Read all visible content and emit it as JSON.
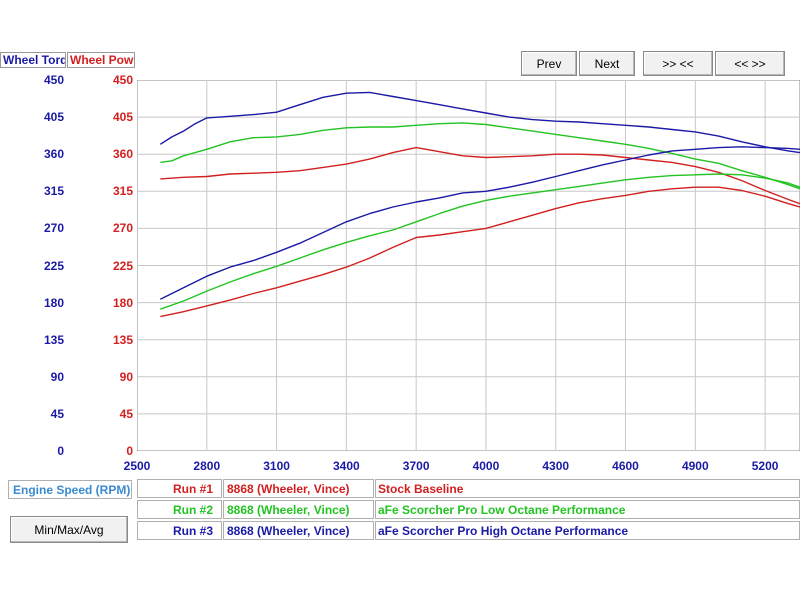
{
  "header": {
    "torque_label": "Wheel Torq",
    "power_label": "Wheel Pow"
  },
  "nav": {
    "prev": "Prev",
    "next": "Next",
    "zoom_in": ">> <<",
    "zoom_out": "<< >>"
  },
  "bottom": {
    "x_axis_title": "Engine Speed (RPM)",
    "minmax_button": "Min/Max/Avg"
  },
  "runs": [
    {
      "run": "Run #1",
      "vehicle": "8868 (Wheeler, Vince)",
      "description": "Stock Baseline",
      "color": "#d22020"
    },
    {
      "run": "Run #2",
      "vehicle": "8868 (Wheeler, Vince)",
      "description": "aFe Scorcher Pro Low Octane Performance",
      "color": "#22c322"
    },
    {
      "run": "Run #3",
      "vehicle": "8868 (Wheeler, Vince)",
      "description": "aFe Scorcher Pro High Octane Performance",
      "color": "#1a1aa6"
    }
  ],
  "colors": {
    "torque_axis": "#1a1aa6",
    "power_axis": "#d22020",
    "grid": "#c8c8c8"
  },
  "chart_data": {
    "type": "line",
    "xlabel": "Engine Speed (RPM)",
    "y_left_label": "Wheel Torq",
    "y_right_label": "Wheel Pow",
    "xlim": [
      2500,
      5350
    ],
    "ylim": [
      0,
      450
    ],
    "grid": true,
    "x_ticks": [
      "2500",
      "2800",
      "3100",
      "3400",
      "3700",
      "4000",
      "4300",
      "4600",
      "4900",
      "5200"
    ],
    "y_ticks": [
      "0",
      "45",
      "90",
      "135",
      "180",
      "225",
      "270",
      "315",
      "360",
      "405",
      "450"
    ],
    "series": [
      {
        "name": "Run #1",
        "measure": "torque",
        "color": "#d22020",
        "x": [
          2600,
          2700,
          2800,
          2900,
          3000,
          3100,
          3200,
          3300,
          3400,
          3500,
          3600,
          3700,
          3800,
          3900,
          4000,
          4100,
          4200,
          4300,
          4400,
          4500,
          4600,
          4700,
          4800,
          4900,
          5000,
          5100,
          5200,
          5300,
          5350
        ],
        "y": [
          330,
          332,
          333,
          336,
          337,
          338,
          340,
          344,
          348,
          354,
          362,
          368,
          363,
          358,
          356,
          357,
          358,
          360,
          360,
          359,
          356,
          353,
          350,
          345,
          338,
          328,
          316,
          305,
          300
        ]
      },
      {
        "name": "Run #1",
        "measure": "power",
        "color": "#d22020",
        "x": [
          2600,
          2700,
          2800,
          2900,
          3000,
          3100,
          3200,
          3300,
          3400,
          3500,
          3600,
          3700,
          3800,
          3900,
          4000,
          4100,
          4200,
          4300,
          4400,
          4500,
          4600,
          4700,
          4800,
          4900,
          5000,
          5100,
          5200,
          5300,
          5350
        ],
        "y": [
          163,
          169,
          176,
          183,
          191,
          198,
          206,
          214,
          223,
          234,
          247,
          259,
          262,
          266,
          270,
          278,
          286,
          294,
          301,
          306,
          310,
          315,
          318,
          320,
          320,
          316,
          309,
          300,
          296
        ]
      },
      {
        "name": "Run #2",
        "measure": "torque",
        "color": "#22c322",
        "x": [
          2600,
          2650,
          2700,
          2800,
          2900,
          3000,
          3100,
          3200,
          3300,
          3400,
          3500,
          3600,
          3700,
          3800,
          3900,
          4000,
          4100,
          4200,
          4300,
          4400,
          4500,
          4600,
          4700,
          4800,
          4900,
          5000,
          5100,
          5200,
          5300,
          5350
        ],
        "y": [
          350,
          352,
          358,
          366,
          375,
          380,
          381,
          384,
          389,
          392,
          393,
          393,
          395,
          397,
          398,
          396,
          392,
          388,
          384,
          380,
          376,
          372,
          367,
          361,
          354,
          349,
          340,
          332,
          323,
          318
        ]
      },
      {
        "name": "Run #2",
        "measure": "power",
        "color": "#22c322",
        "x": [
          2600,
          2700,
          2800,
          2900,
          3000,
          3100,
          3200,
          3300,
          3400,
          3500,
          3600,
          3700,
          3800,
          3900,
          4000,
          4100,
          4200,
          4300,
          4400,
          4500,
          4600,
          4700,
          4800,
          4900,
          5000,
          5100,
          5200,
          5300,
          5350
        ],
        "y": [
          172,
          182,
          194,
          205,
          215,
          224,
          234,
          244,
          253,
          261,
          268,
          278,
          288,
          297,
          304,
          309,
          313,
          317,
          321,
          325,
          329,
          332,
          334,
          335,
          336,
          335,
          331,
          325,
          320
        ]
      },
      {
        "name": "Run #3",
        "measure": "torque",
        "color": "#1a1aa6",
        "x": [
          2600,
          2650,
          2700,
          2750,
          2800,
          2900,
          3000,
          3100,
          3200,
          3300,
          3400,
          3500,
          3600,
          3700,
          3800,
          3900,
          4000,
          4100,
          4200,
          4300,
          4400,
          4500,
          4600,
          4700,
          4800,
          4900,
          5000,
          5100,
          5200,
          5300,
          5350
        ],
        "y": [
          372,
          381,
          388,
          397,
          404,
          406,
          408,
          411,
          420,
          429,
          434,
          435,
          430,
          425,
          420,
          415,
          410,
          405,
          402,
          400,
          399,
          397,
          395,
          393,
          390,
          387,
          382,
          375,
          369,
          364,
          362
        ]
      },
      {
        "name": "Run #3",
        "measure": "power",
        "color": "#1a1aa6",
        "x": [
          2600,
          2700,
          2800,
          2900,
          3000,
          3100,
          3200,
          3300,
          3400,
          3500,
          3600,
          3700,
          3800,
          3900,
          4000,
          4100,
          4200,
          4300,
          4400,
          4500,
          4600,
          4700,
          4800,
          4900,
          5000,
          5100,
          5200,
          5300,
          5350
        ],
        "y": [
          184,
          198,
          212,
          223,
          231,
          241,
          252,
          265,
          278,
          288,
          296,
          302,
          307,
          313,
          315,
          320,
          326,
          333,
          340,
          347,
          353,
          359,
          364,
          366,
          368,
          369,
          368,
          367,
          366
        ]
      }
    ]
  }
}
